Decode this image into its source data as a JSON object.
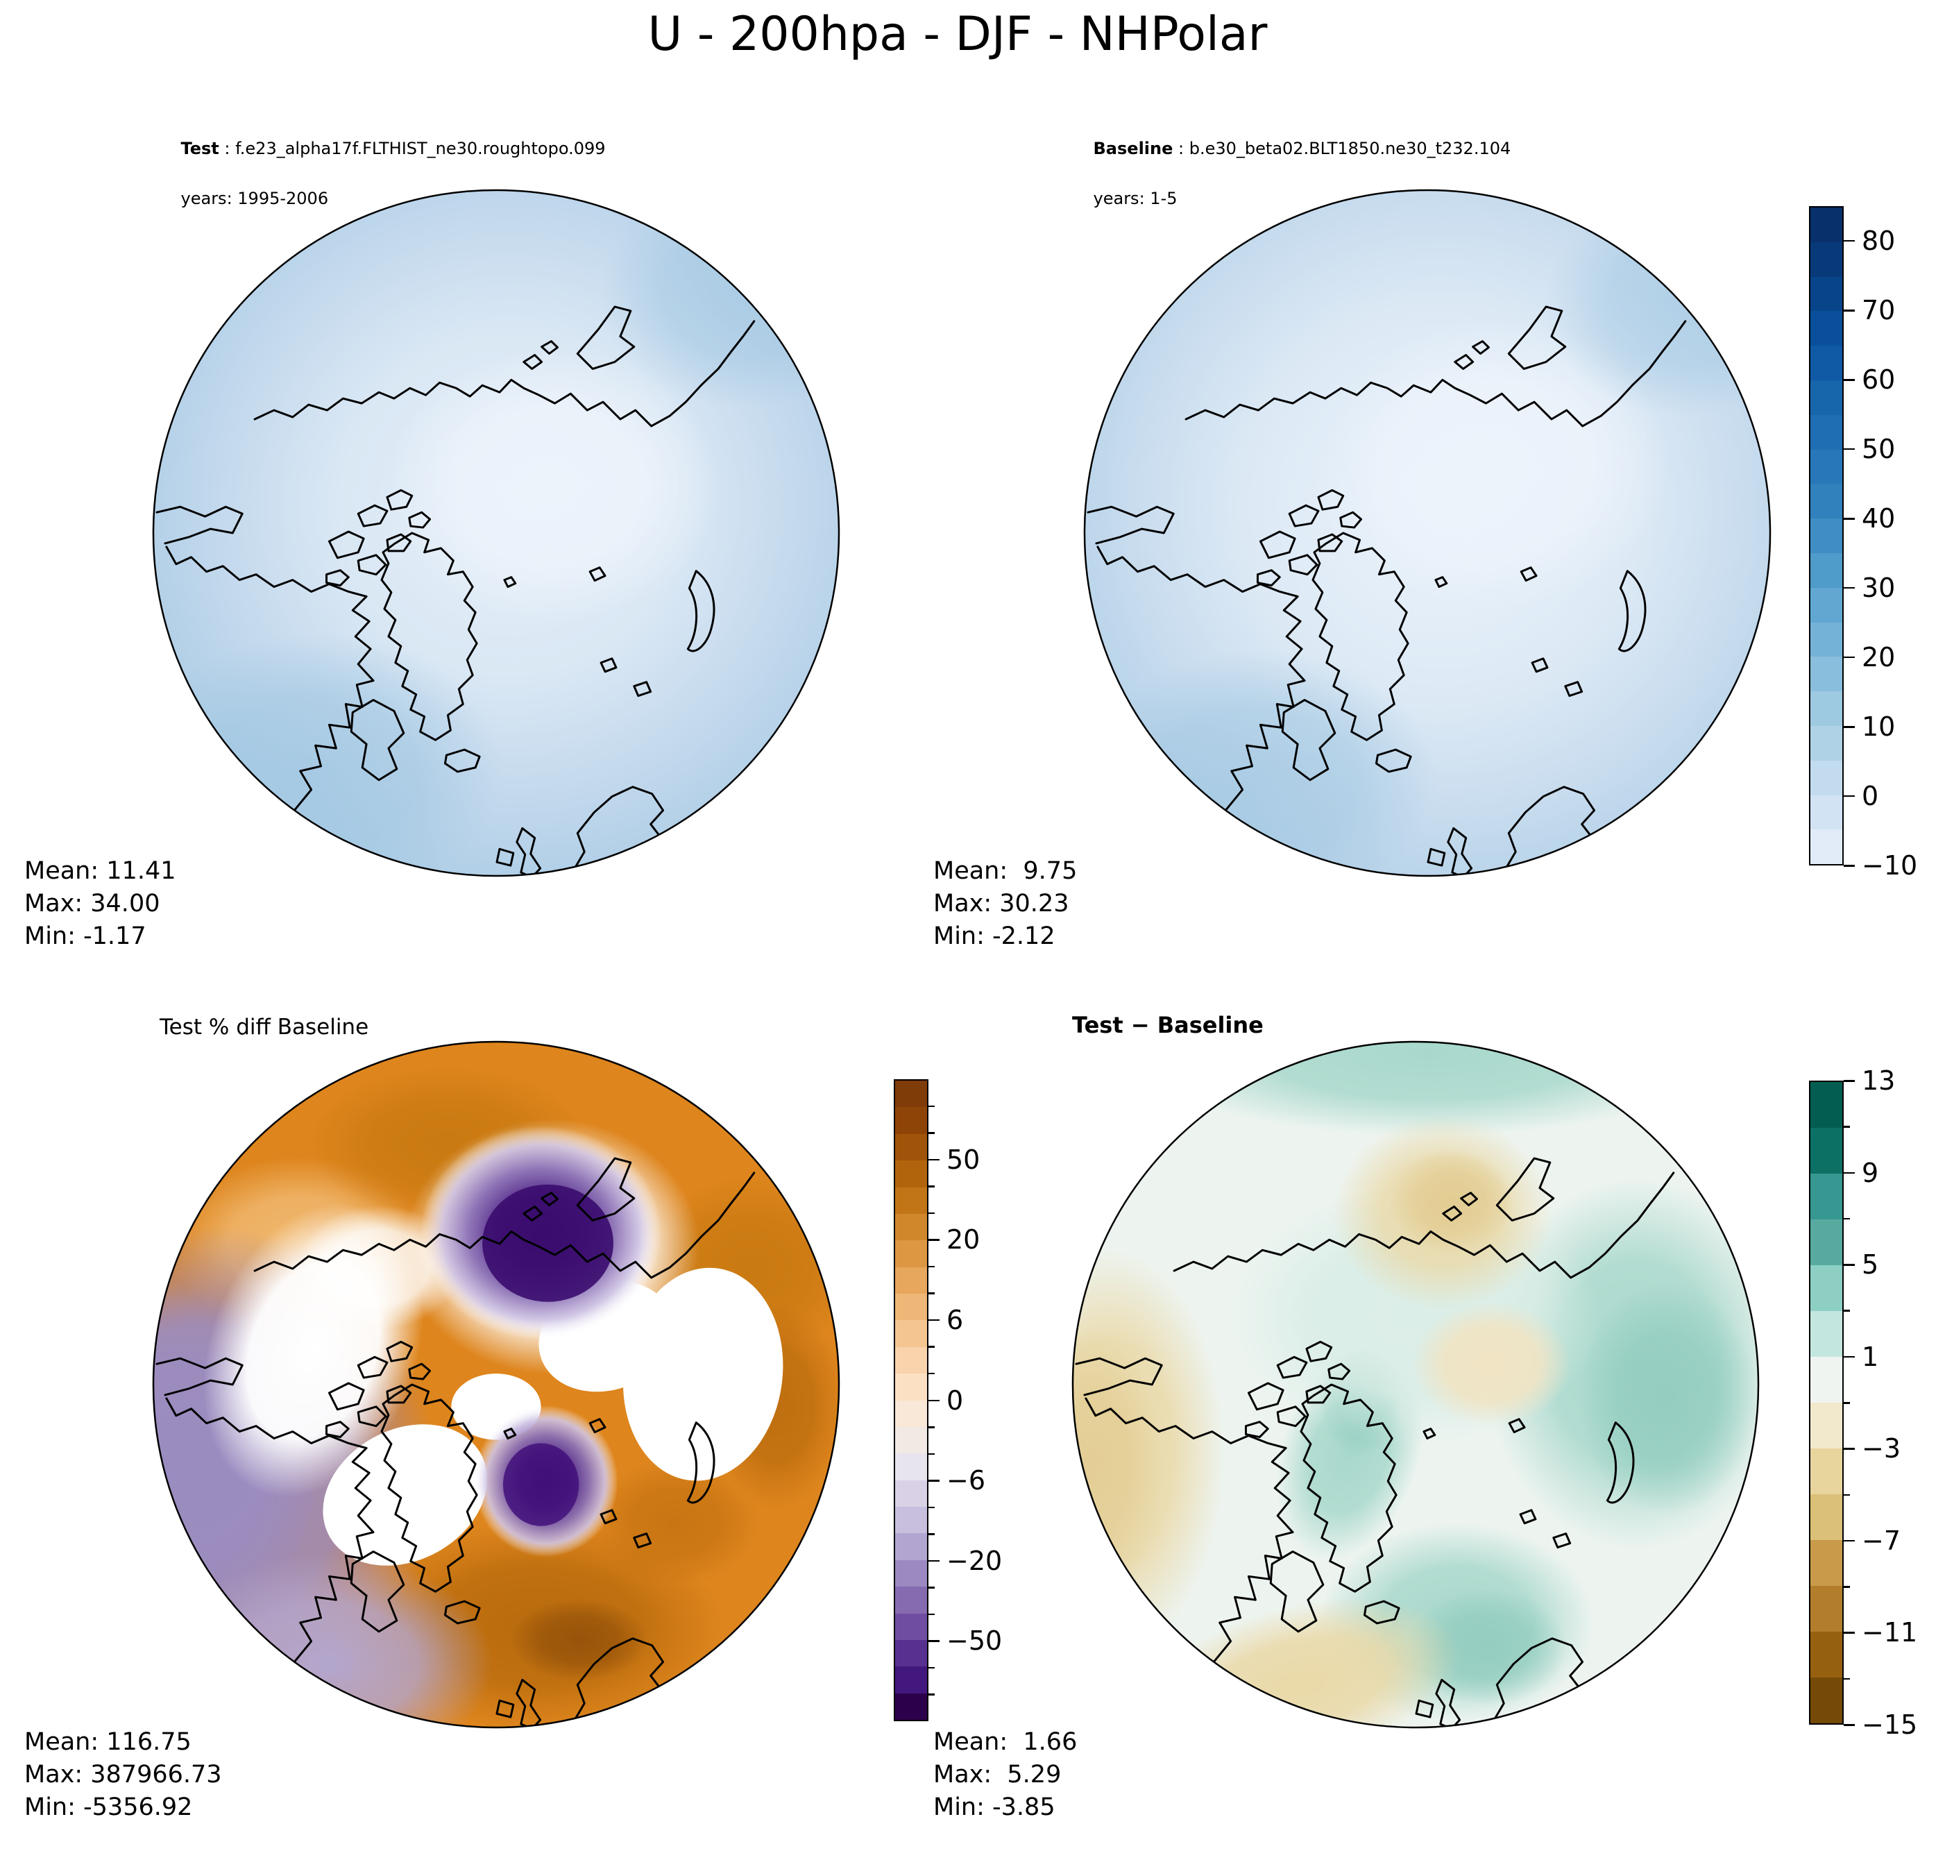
{
  "title": "U - 200hpa - DJF - NHPolar",
  "headers": {
    "test_name": "Test",
    "test_case": " : f.e23_alpha17f.FLTHIST_ne30.roughtopo.099",
    "test_years": "years: 1995-2006",
    "baseline_name": "Baseline",
    "baseline_case": " : b.e30_beta02.BLT1850.ne30_t232.104",
    "baseline_years": "years: 1-5"
  },
  "panel_titles": {
    "pct_diff": "Test % diff Baseline",
    "diff": "Test − Baseline"
  },
  "stats": {
    "test": [
      "Mean: 11.41",
      "Max: 34.00",
      "Min: -1.17"
    ],
    "baseline": [
      "Mean:  9.75",
      "Max: 30.23",
      "Min: -2.12"
    ],
    "pct_diff": [
      "Mean: 116.75",
      "Max: 387966.73",
      "Min: -5356.92"
    ],
    "diff": [
      "Mean:  1.66",
      "Max:  5.29",
      "Min: -3.85"
    ]
  },
  "colorbars": {
    "main": {
      "cmap": "Blues",
      "segments": [
        "#08306b",
        "#083a7a",
        "#084489",
        "#094f99",
        "#1059a5",
        "#1765ab",
        "#1f6eb3",
        "#2878b9",
        "#3181bd",
        "#3f8dc3",
        "#4f9bca",
        "#61a7d2",
        "#74b2d8",
        "#89bedc",
        "#9ecae1",
        "#b0d2e7",
        "#c2dbee",
        "#d2e3f3",
        "#e1ecf8"
      ],
      "ticks": [
        {
          "label": "80",
          "f": 0.0526
        },
        {
          "label": "70",
          "f": 0.1579
        },
        {
          "label": "60",
          "f": 0.2632
        },
        {
          "label": "50",
          "f": 0.3684
        },
        {
          "label": "40",
          "f": 0.4737
        },
        {
          "label": "30",
          "f": 0.5789
        },
        {
          "label": "20",
          "f": 0.6842
        },
        {
          "label": "10",
          "f": 0.7895
        },
        {
          "label": "0",
          "f": 0.8947
        },
        {
          "label": "−10",
          "f": 1.0
        }
      ],
      "minor_ticks": []
    },
    "pct_diff": {
      "cmap": "PuOr_r",
      "segments": [
        "#7f3b08",
        "#8f4407",
        "#a0540a",
        "#b2640c",
        "#c27516",
        "#d0862b",
        "#dd9742",
        "#e7a75c",
        "#eeb677",
        "#f4c591",
        "#f9d3ab",
        "#fce0c4",
        "#f9e7d7",
        "#f2e9e4",
        "#e8e4ee",
        "#d9d2e7",
        "#c7bfdd",
        "#b2a6d1",
        "#9c89c2",
        "#866bb1",
        "#6f4da0",
        "#583190",
        "#42187e",
        "#2d004b"
      ],
      "ticks": [
        {
          "label": "50",
          "f": 0.125
        },
        {
          "label": "20",
          "f": 0.25
        },
        {
          "label": "6",
          "f": 0.375
        },
        {
          "label": "0",
          "f": 0.5
        },
        {
          "label": "−6",
          "f": 0.625
        },
        {
          "label": "−20",
          "f": 0.75
        },
        {
          "label": "−50",
          "f": 0.875
        }
      ],
      "minor_ticks": [
        0.0417,
        0.0833,
        0.1667,
        0.2083,
        0.2917,
        0.3333,
        0.4167,
        0.4583,
        0.5417,
        0.5833,
        0.6667,
        0.7083,
        0.7917,
        0.8333,
        0.9167,
        0.9583
      ]
    },
    "diff": {
      "cmap": "BrBG",
      "segments": [
        "#035e51",
        "#0c7065",
        "#369890",
        "#58aaa0",
        "#8ecfc4",
        "#c3e7df",
        "#f0f4f1",
        "#f2e8cc",
        "#e8d59e",
        "#dbc077",
        "#c89a4a",
        "#b37e2c",
        "#96610f",
        "#744a06"
      ],
      "ticks": [
        {
          "label": "13",
          "f": 0.0
        },
        {
          "label": "9",
          "f": 0.1429
        },
        {
          "label": "5",
          "f": 0.2857
        },
        {
          "label": "1",
          "f": 0.4286
        },
        {
          "label": "−3",
          "f": 0.5714
        },
        {
          "label": "−7",
          "f": 0.7143
        },
        {
          "label": "−11",
          "f": 0.8571
        },
        {
          "label": "−15",
          "f": 1.0
        }
      ],
      "minor_ticks": [
        0.0714,
        0.2143,
        0.3571,
        0.5,
        0.6429,
        0.7857,
        0.9286
      ]
    }
  },
  "chart_data": [
    {
      "type": "heatmap",
      "subtype": "filled-contour polar stereographic map",
      "title": "Test",
      "case": "f.e23_alpha17f.FLTHIST_ne30.roughtopo.099",
      "years": "1995-2006",
      "variable": "U",
      "level": "200hpa",
      "season": "DJF",
      "region": "NHPolar",
      "mean": 11.41,
      "max": 34.0,
      "min": -1.17,
      "cmap": "Blues",
      "contour_levels": [
        -10,
        -5,
        0,
        5,
        10,
        15,
        20,
        25,
        30,
        35,
        40,
        45,
        50,
        55,
        60,
        65,
        70,
        75,
        80,
        85
      ],
      "colorbar_ticks": [
        80,
        70,
        60,
        50,
        40,
        30,
        20,
        10,
        0,
        -10
      ],
      "legend_position": "right shared colorbar"
    },
    {
      "type": "heatmap",
      "subtype": "filled-contour polar stereographic map",
      "title": "Baseline",
      "case": "b.e30_beta02.BLT1850.ne30_t232.104",
      "years": "1-5",
      "variable": "U",
      "level": "200hpa",
      "season": "DJF",
      "region": "NHPolar",
      "mean": 9.75,
      "max": 30.23,
      "min": -2.12,
      "cmap": "Blues",
      "contour_levels": [
        -10,
        -5,
        0,
        5,
        10,
        15,
        20,
        25,
        30,
        35,
        40,
        45,
        50,
        55,
        60,
        65,
        70,
        75,
        80,
        85
      ],
      "colorbar_ticks": [
        80,
        70,
        60,
        50,
        40,
        30,
        20,
        10,
        0,
        -10
      ],
      "legend_position": "right shared colorbar"
    },
    {
      "type": "heatmap",
      "subtype": "filled-contour polar stereographic map",
      "title": "Test % diff Baseline",
      "variable": "U",
      "level": "200hpa",
      "season": "DJF",
      "region": "NHPolar",
      "mean": 116.75,
      "max": 387966.73,
      "min": -5356.92,
      "cmap": "PuOr_r",
      "contour_levels": [
        -100,
        -80,
        -60,
        -50,
        -40,
        -30,
        -20,
        -10,
        -8,
        -6,
        -4,
        -2,
        0,
        2,
        4,
        6,
        8,
        10,
        20,
        30,
        40,
        50,
        60,
        80,
        100
      ],
      "colorbar_ticks": [
        50,
        20,
        6,
        0,
        -6,
        -20,
        -50
      ],
      "legend_position": "right colorbar"
    },
    {
      "type": "heatmap",
      "subtype": "filled-contour polar stereographic map",
      "title": "Test − Baseline",
      "variable": "U",
      "level": "200hpa",
      "season": "DJF",
      "region": "NHPolar",
      "mean": 1.66,
      "max": 5.29,
      "min": -3.85,
      "cmap": "BrBG",
      "contour_levels": [
        -15,
        -13,
        -11,
        -9,
        -7,
        -5,
        -3,
        -1,
        1,
        3,
        5,
        7,
        9,
        11,
        13
      ],
      "colorbar_ticks": [
        13,
        9,
        5,
        1,
        -3,
        -7,
        -11,
        -15
      ],
      "legend_position": "right colorbar"
    }
  ]
}
